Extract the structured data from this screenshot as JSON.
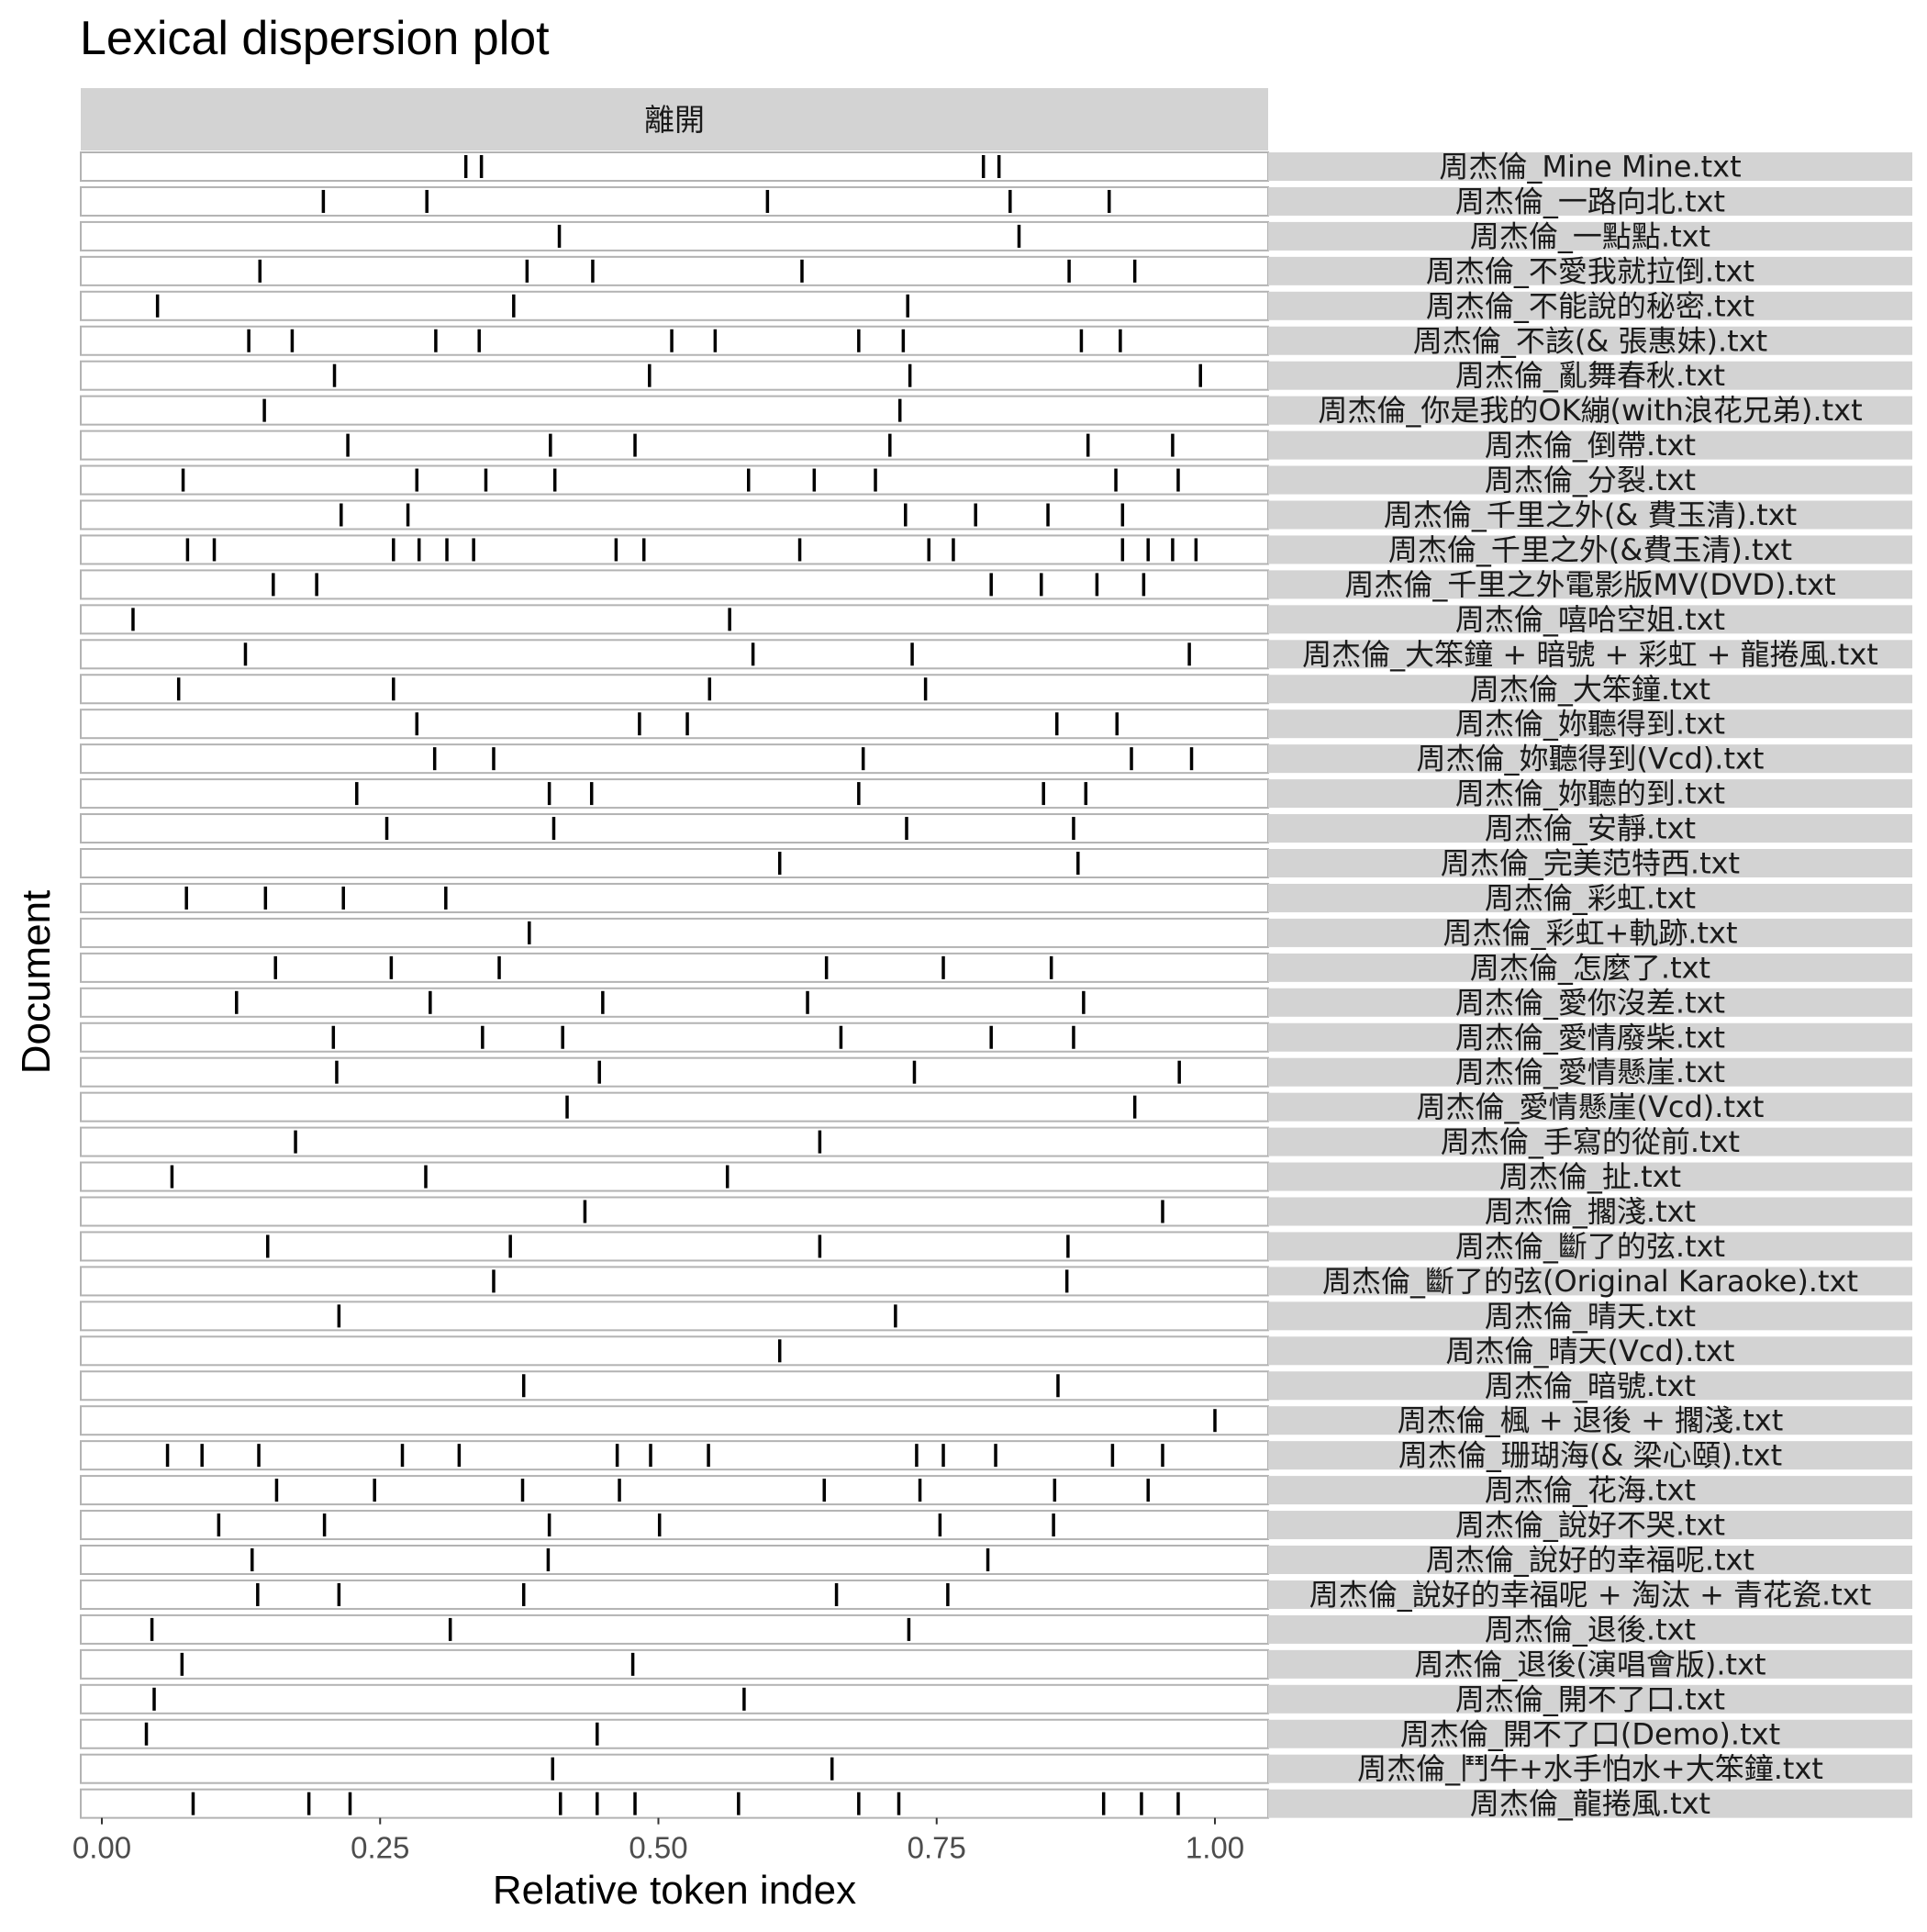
{
  "chart_data": {
    "type": "lexical-dispersion",
    "title": "Lexical dispersion plot",
    "xlabel": "Relative token index",
    "ylabel": "Document",
    "facet_label": "離開",
    "xlim": [
      0,
      1
    ],
    "x_ticks": [
      "0.00",
      "0.25",
      "0.50",
      "0.75",
      "1.00"
    ],
    "x_tick_values": [
      0,
      0.25,
      0.5,
      0.75,
      1.0
    ],
    "strip_color": "#d3d3d3",
    "panel_border_color": "#b3b3b3",
    "mark_color": "#000000",
    "documents": [
      {
        "name": "周杰倫_Mine Mine.txt",
        "positions": [
          0.327,
          0.341,
          0.792,
          0.806
        ]
      },
      {
        "name": "周杰倫_一路向北.txt",
        "positions": [
          0.199,
          0.292,
          0.598,
          0.816,
          0.905
        ]
      },
      {
        "name": "周杰倫_一點點.txt",
        "positions": [
          0.411,
          0.824
        ]
      },
      {
        "name": "周杰倫_不愛我就拉倒.txt",
        "positions": [
          0.142,
          0.382,
          0.441,
          0.629,
          0.869,
          0.928
        ]
      },
      {
        "name": "周杰倫_不能說的秘密.txt",
        "positions": [
          0.05,
          0.37,
          0.724
        ]
      },
      {
        "name": "周杰倫_不該(& 張惠妹).txt",
        "positions": [
          0.132,
          0.171,
          0.3,
          0.339,
          0.512,
          0.551,
          0.68,
          0.72,
          0.88,
          0.915
        ]
      },
      {
        "name": "周杰倫_亂舞春秋.txt",
        "positions": [
          0.209,
          0.492,
          0.726,
          0.987
        ]
      },
      {
        "name": "周杰倫_你是我的OK繃(with浪花兄弟).txt",
        "positions": [
          0.146,
          0.717
        ]
      },
      {
        "name": "周杰倫_倒帶.txt",
        "positions": [
          0.221,
          0.403,
          0.479,
          0.708,
          0.886,
          0.962
        ]
      },
      {
        "name": "周杰倫_分裂.txt",
        "positions": [
          0.073,
          0.283,
          0.345,
          0.407,
          0.581,
          0.64,
          0.695,
          0.911,
          0.967
        ]
      },
      {
        "name": "周杰倫_千里之外(& 費玉清).txt",
        "positions": [
          0.215,
          0.275,
          0.722,
          0.785,
          0.85,
          0.917
        ]
      },
      {
        "name": "周杰倫_千里之外(&費玉清).txt",
        "positions": [
          0.077,
          0.101,
          0.262,
          0.285,
          0.31,
          0.334,
          0.462,
          0.487,
          0.627,
          0.743,
          0.765,
          0.917,
          0.94,
          0.962,
          0.983
        ]
      },
      {
        "name": "周杰倫_千里之外電影版MV(DVD).txt",
        "positions": [
          0.154,
          0.193,
          0.799,
          0.844,
          0.894,
          0.936
        ]
      },
      {
        "name": "周杰倫_嘻哈空姐.txt",
        "positions": [
          0.028,
          0.564
        ]
      },
      {
        "name": "周杰倫_大笨鐘 + 暗號 + 彩虹 + 龍捲風.txt",
        "positions": [
          0.129,
          0.585,
          0.728,
          0.977
        ]
      },
      {
        "name": "周杰倫_大笨鐘.txt",
        "positions": [
          0.069,
          0.262,
          0.546,
          0.74
        ]
      },
      {
        "name": "周杰倫_妳聽得到.txt",
        "positions": [
          0.283,
          0.483,
          0.526,
          0.858,
          0.912
        ]
      },
      {
        "name": "周杰倫_妳聽得到(Vcd).txt",
        "positions": [
          0.299,
          0.352,
          0.684,
          0.925,
          0.979
        ]
      },
      {
        "name": "周杰倫_妳聽的到.txt",
        "positions": [
          0.229,
          0.402,
          0.44,
          0.68,
          0.846,
          0.884
        ]
      },
      {
        "name": "周杰倫_安靜.txt",
        "positions": [
          0.256,
          0.406,
          0.723,
          0.873
        ]
      },
      {
        "name": "周杰倫_完美范特西.txt",
        "positions": [
          0.609,
          0.877
        ]
      },
      {
        "name": "周杰倫_彩虹.txt",
        "positions": [
          0.076,
          0.147,
          0.217,
          0.309
        ]
      },
      {
        "name": "周杰倫_彩虹+軌跡.txt",
        "positions": [
          0.384
        ]
      },
      {
        "name": "周杰倫_怎麼了.txt",
        "positions": [
          0.156,
          0.26,
          0.357,
          0.651,
          0.756,
          0.853
        ]
      },
      {
        "name": "周杰倫_愛你沒差.txt",
        "positions": [
          0.121,
          0.295,
          0.45,
          0.634,
          0.882
        ]
      },
      {
        "name": "周杰倫_愛情廢柴.txt",
        "positions": [
          0.208,
          0.342,
          0.414,
          0.664,
          0.799,
          0.873
        ]
      },
      {
        "name": "周杰倫_愛情懸崖.txt",
        "positions": [
          0.211,
          0.447,
          0.73,
          0.968
        ]
      },
      {
        "name": "周杰倫_愛情懸崖(Vcd).txt",
        "positions": [
          0.418,
          0.928
        ]
      },
      {
        "name": "周杰倫_手寫的從前.txt",
        "positions": [
          0.174,
          0.645
        ]
      },
      {
        "name": "周杰倫_扯.txt",
        "positions": [
          0.063,
          0.291,
          0.562
        ]
      },
      {
        "name": "周杰倫_擱淺.txt",
        "positions": [
          0.434,
          0.953
        ]
      },
      {
        "name": "周杰倫_斷了的弦.txt",
        "positions": [
          0.149,
          0.367,
          0.645,
          0.868
        ]
      },
      {
        "name": "周杰倫_斷了的弦(Original Karaoke).txt",
        "positions": [
          0.352,
          0.867
        ]
      },
      {
        "name": "周杰倫_晴天.txt",
        "positions": [
          0.213,
          0.713
        ]
      },
      {
        "name": "周杰倫_晴天(Vcd).txt",
        "positions": [
          0.609
        ]
      },
      {
        "name": "周杰倫_暗號.txt",
        "positions": [
          0.379,
          0.859
        ]
      },
      {
        "name": "周杰倫_楓 + 退後 + 擱淺.txt",
        "positions": [
          1.0
        ]
      },
      {
        "name": "周杰倫_珊瑚海(& 梁心頤).txt",
        "positions": [
          0.059,
          0.09,
          0.141,
          0.27,
          0.321,
          0.463,
          0.493,
          0.545,
          0.732,
          0.756,
          0.803,
          0.908,
          0.953
        ]
      },
      {
        "name": "周杰倫_花海.txt",
        "positions": [
          0.157,
          0.245,
          0.378,
          0.465,
          0.649,
          0.735,
          0.856,
          0.94
        ]
      },
      {
        "name": "周杰倫_說好不哭.txt",
        "positions": [
          0.105,
          0.2,
          0.402,
          0.501,
          0.753,
          0.855
        ]
      },
      {
        "name": "周杰倫_說好的幸福呢.txt",
        "positions": [
          0.135,
          0.401,
          0.796
        ]
      },
      {
        "name": "周杰倫_說好的幸福呢 + 淘汰 + 青花瓷.txt",
        "positions": [
          0.14,
          0.213,
          0.379,
          0.66,
          0.76
        ]
      },
      {
        "name": "周杰倫_退後.txt",
        "positions": [
          0.045,
          0.313,
          0.725
        ]
      },
      {
        "name": "周杰倫_退後(演唱會版).txt",
        "positions": [
          0.072,
          0.477
        ]
      },
      {
        "name": "周杰倫_開不了口.txt",
        "positions": [
          0.047,
          0.577
        ]
      },
      {
        "name": "周杰倫_開不了口(Demo).txt",
        "positions": [
          0.04,
          0.445
        ]
      },
      {
        "name": "周杰倫_鬥牛+水手怕水+大笨鐘.txt",
        "positions": [
          0.405,
          0.656
        ]
      },
      {
        "name": "周杰倫_龍捲風.txt",
        "positions": [
          0.082,
          0.186,
          0.223,
          0.412,
          0.445,
          0.479,
          0.572,
          0.68,
          0.716,
          0.9,
          0.934,
          0.967
        ]
      }
    ]
  }
}
